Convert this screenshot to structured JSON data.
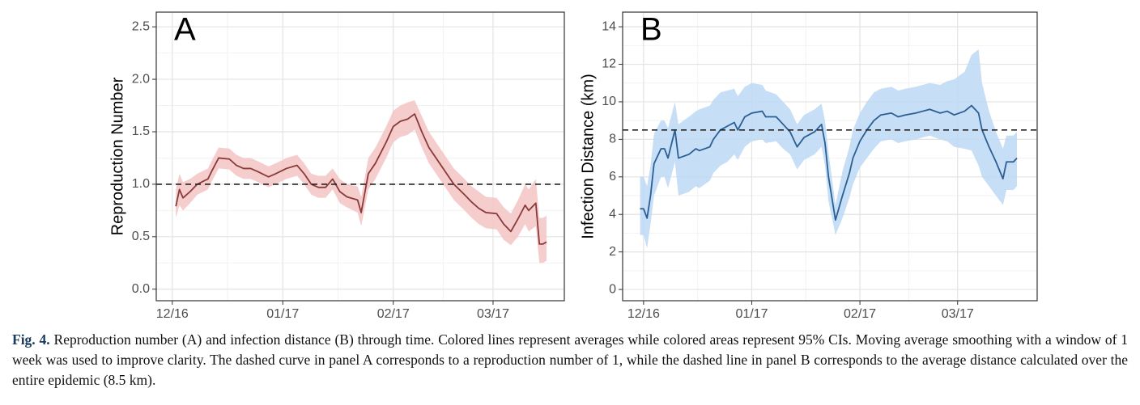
{
  "chart_data": [
    {
      "type": "line",
      "panel_label": "A",
      "ylabel": "Reproduction Number",
      "xlim": [
        -4.5,
        110
      ],
      "xticks": [
        {
          "value": 0,
          "label": "12/16"
        },
        {
          "value": 31,
          "label": "01/17"
        },
        {
          "value": 62,
          "label": "02/17"
        },
        {
          "value": 90,
          "label": "03/17"
        }
      ],
      "ylim": [
        -0.11,
        2.64
      ],
      "yticks": [
        {
          "value": 0,
          "label": "0.0"
        },
        0.5,
        {
          "value": 1,
          "label": "1.0"
        },
        1.5,
        {
          "value": 2,
          "label": "2.0"
        },
        2.5
      ],
      "grid": true,
      "reference_line": 1.0,
      "series": [
        {
          "color": "#8b3a3a",
          "band_color": "#f5c4c4",
          "x": [
            1,
            2,
            3,
            5,
            7,
            10,
            11,
            13,
            16,
            18,
            20,
            22,
            24,
            27,
            29,
            32,
            35,
            37,
            39,
            41,
            43,
            45,
            47,
            49,
            52,
            53,
            55,
            57,
            60,
            62,
            64,
            66,
            68,
            70,
            72,
            75,
            77,
            79,
            82,
            84,
            86,
            88,
            91,
            93,
            95,
            97,
            99,
            100,
            102,
            103,
            104,
            105
          ],
          "values": [
            0.79,
            0.95,
            0.87,
            0.93,
            1.0,
            1.05,
            1.12,
            1.25,
            1.24,
            1.18,
            1.15,
            1.15,
            1.12,
            1.07,
            1.1,
            1.15,
            1.18,
            1.1,
            1.0,
            0.97,
            0.97,
            1.05,
            0.93,
            0.88,
            0.85,
            0.73,
            1.1,
            1.2,
            1.4,
            1.55,
            1.6,
            1.62,
            1.67,
            1.5,
            1.35,
            1.2,
            1.1,
            1.0,
            0.9,
            0.83,
            0.77,
            0.73,
            0.72,
            0.62,
            0.55,
            0.67,
            0.8,
            0.75,
            0.82,
            0.43,
            0.43,
            0.45
          ],
          "upper": [
            0.95,
            1.1,
            1.02,
            1.05,
            1.1,
            1.15,
            1.22,
            1.35,
            1.34,
            1.28,
            1.25,
            1.25,
            1.22,
            1.17,
            1.2,
            1.25,
            1.28,
            1.2,
            1.1,
            1.08,
            1.08,
            1.15,
            1.05,
            1.0,
            0.98,
            0.88,
            1.25,
            1.35,
            1.55,
            1.7,
            1.75,
            1.78,
            1.8,
            1.65,
            1.5,
            1.35,
            1.25,
            1.15,
            1.05,
            0.98,
            0.93,
            0.88,
            0.87,
            0.78,
            0.72,
            0.85,
            1.0,
            0.95,
            1.05,
            0.68,
            0.68,
            0.7
          ],
          "lower": [
            0.68,
            0.8,
            0.75,
            0.82,
            0.9,
            0.95,
            1.02,
            1.15,
            1.14,
            1.08,
            1.05,
            1.05,
            1.02,
            0.97,
            1.0,
            1.05,
            1.08,
            1.0,
            0.9,
            0.87,
            0.87,
            0.95,
            0.82,
            0.78,
            0.73,
            0.6,
            0.95,
            1.05,
            1.25,
            1.4,
            1.45,
            1.47,
            1.52,
            1.35,
            1.2,
            1.05,
            0.95,
            0.85,
            0.75,
            0.68,
            0.62,
            0.58,
            0.57,
            0.47,
            0.42,
            0.5,
            0.62,
            0.55,
            0.6,
            0.25,
            0.25,
            0.27
          ]
        }
      ]
    },
    {
      "type": "line",
      "panel_label": "B",
      "ylabel": "Infection Distance (km)",
      "xlim": [
        -6,
        112.8
      ],
      "xticks": [
        {
          "value": 0,
          "label": "12/16"
        },
        {
          "value": 31,
          "label": "01/17"
        },
        {
          "value": 62,
          "label": "02/17"
        },
        {
          "value": 90,
          "label": "03/17"
        }
      ],
      "ylim": [
        -0.6,
        14.78
      ],
      "yticks": [
        0,
        2,
        4,
        6,
        8,
        10,
        12,
        14
      ],
      "grid": true,
      "reference_line": 8.5,
      "series": [
        {
          "color": "#2b5f94",
          "band_color": "#bcd8f4",
          "x": [
            -1,
            0,
            1,
            2,
            3,
            5,
            6,
            7,
            9,
            10,
            13,
            15,
            16,
            19,
            20,
            22,
            24,
            26,
            27,
            29,
            31,
            34,
            35,
            38,
            40,
            42,
            44,
            46,
            49,
            51,
            52,
            53,
            55,
            57,
            59,
            60,
            62,
            64,
            66,
            68,
            71,
            73,
            75,
            78,
            80,
            82,
            85,
            87,
            89,
            92,
            94,
            96,
            97,
            99,
            101,
            103,
            104,
            106,
            107
          ],
          "values": [
            4.3,
            4.3,
            3.8,
            5.0,
            6.7,
            7.5,
            7.5,
            7.0,
            8.5,
            7.0,
            7.2,
            7.5,
            7.4,
            7.6,
            8.0,
            8.5,
            8.7,
            8.9,
            8.5,
            9.2,
            9.4,
            9.5,
            9.2,
            9.2,
            8.8,
            8.4,
            7.6,
            8.1,
            8.4,
            8.8,
            7.8,
            6.0,
            3.7,
            5.0,
            6.2,
            7.0,
            7.9,
            8.5,
            9.0,
            9.3,
            9.4,
            9.2,
            9.3,
            9.4,
            9.5,
            9.6,
            9.4,
            9.5,
            9.3,
            9.5,
            9.8,
            9.4,
            8.5,
            7.6,
            6.8,
            5.9,
            6.8,
            6.8,
            7.0
          ],
          "upper": [
            6.0,
            6.0,
            5.5,
            6.6,
            8.3,
            9.0,
            9.0,
            8.6,
            10.0,
            8.8,
            9.2,
            9.5,
            9.6,
            9.8,
            10.1,
            10.5,
            10.6,
            10.7,
            10.3,
            10.8,
            11.0,
            10.9,
            10.6,
            10.4,
            10.0,
            9.6,
            8.8,
            9.3,
            9.6,
            9.9,
            9.0,
            7.3,
            4.5,
            6.3,
            7.6,
            8.5,
            9.4,
            10.0,
            10.5,
            10.7,
            10.8,
            10.6,
            10.7,
            10.8,
            10.9,
            11.0,
            10.9,
            11.1,
            11.2,
            11.6,
            12.5,
            12.8,
            11.0,
            9.5,
            8.4,
            7.5,
            8.2,
            8.2,
            8.4
          ],
          "lower": [
            2.9,
            2.9,
            2.2,
            3.5,
            5.0,
            6.0,
            6.0,
            5.4,
            6.8,
            5.0,
            5.2,
            5.5,
            5.4,
            5.8,
            6.2,
            6.6,
            6.8,
            7.2,
            6.9,
            7.6,
            7.9,
            8.0,
            7.8,
            7.9,
            7.5,
            7.2,
            6.4,
            6.9,
            7.2,
            7.6,
            6.6,
            4.7,
            2.9,
            3.8,
            4.9,
            5.6,
            6.5,
            7.0,
            7.5,
            7.9,
            8.0,
            7.8,
            7.9,
            8.0,
            8.1,
            8.2,
            8.0,
            7.9,
            7.6,
            7.5,
            7.4,
            6.6,
            6.0,
            5.5,
            5.0,
            4.5,
            5.3,
            5.3,
            5.5
          ]
        }
      ]
    }
  ],
  "caption": {
    "label": "Fig. 4.",
    "text": "Reproduction number (A) and infection distance (B) through time. Colored lines represent averages while colored areas represent 95% CIs. Moving average smoothing with a window of 1 week was used to improve clarity. The dashed curve in panel A corresponds to a reproduction number of 1, while the dashed line in panel B corresponds to the average distance calculated over the entire epidemic (8.5 km)."
  }
}
